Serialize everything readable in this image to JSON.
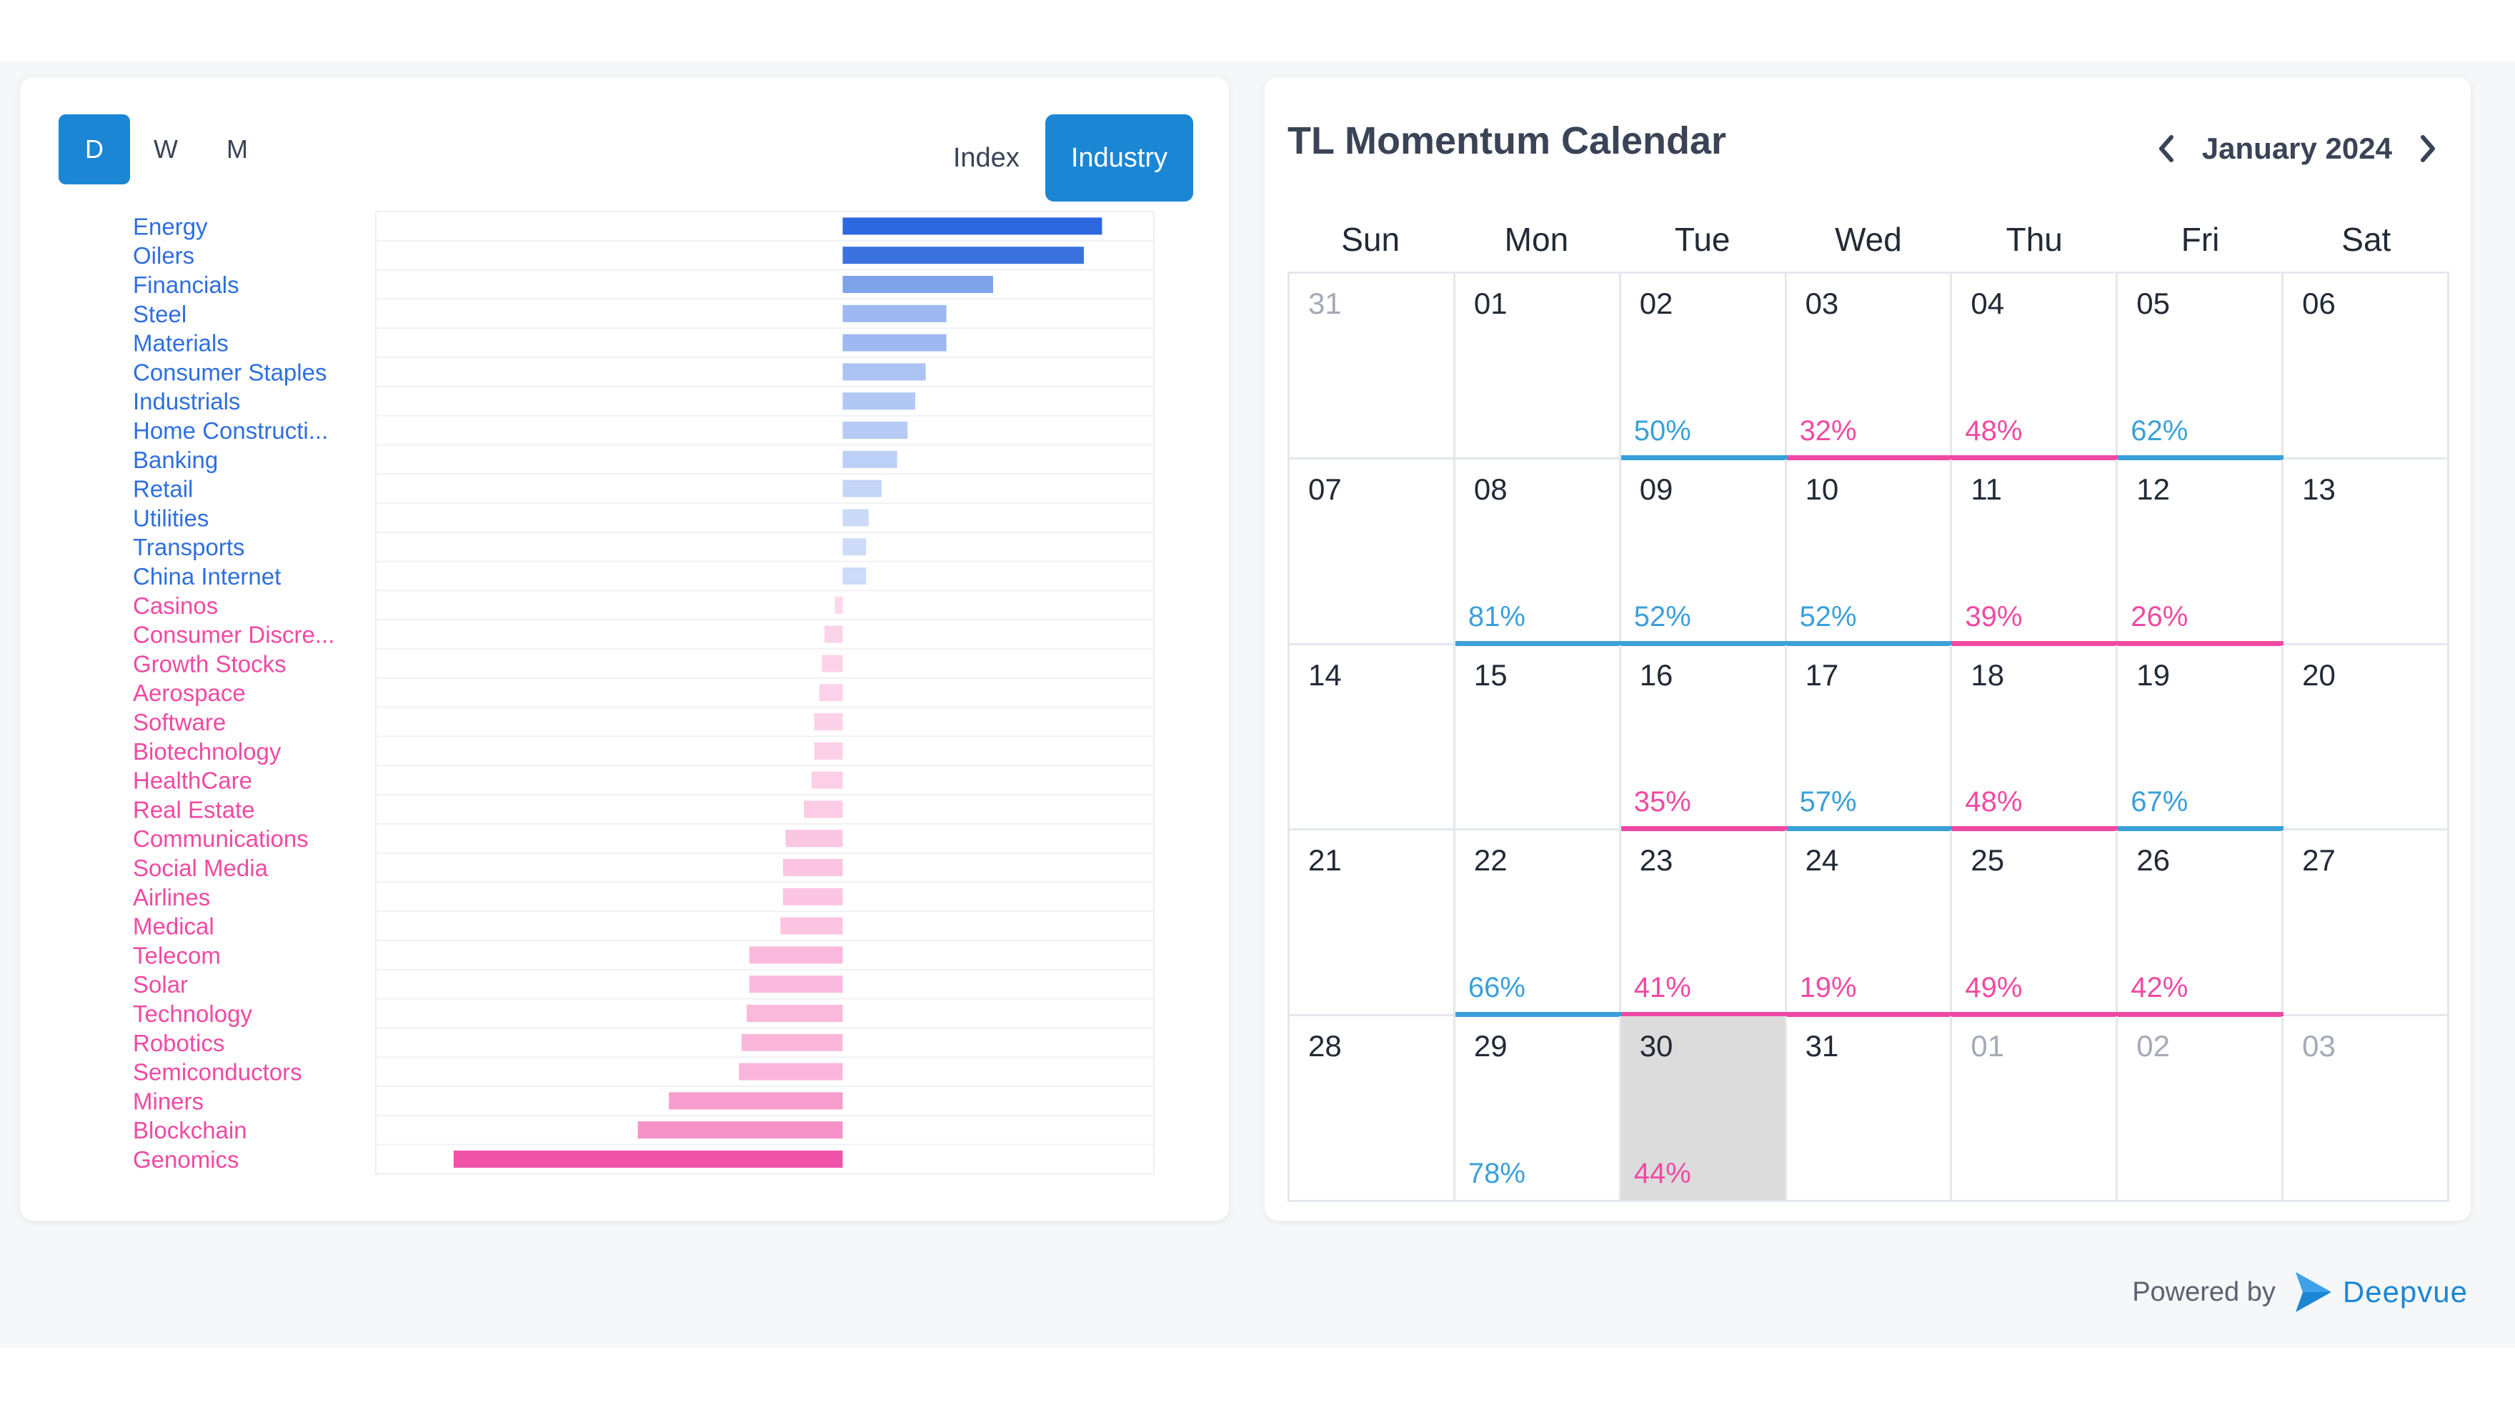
{
  "period_buttons": [
    "D",
    "W",
    "M"
  ],
  "active_period": "D",
  "view_buttons": {
    "index": "Index",
    "industry": "Industry"
  },
  "active_view": "Industry",
  "colors": {
    "accent": "#1b87d4",
    "positive": "#3aa0da",
    "negative": "#ef4aa3"
  },
  "chart_data": {
    "type": "bar",
    "orientation": "horizontal",
    "categories": [
      "Energy",
      "Oilers",
      "Financials",
      "Steel",
      "Materials",
      "Consumer Staples",
      "Industrials",
      "Home Constructi...",
      "Banking",
      "Retail",
      "Utilities",
      "Transports",
      "China Internet",
      "Casinos",
      "Consumer Discre...",
      "Growth Stocks",
      "Aerospace",
      "Software",
      "Biotechnology",
      "HealthCare",
      "Real Estate",
      "Communications",
      "Social Media",
      "Airlines",
      "Medical",
      "Telecom",
      "Solar",
      "Technology",
      "Robotics",
      "Semiconductors",
      "Miners",
      "Blockchain",
      "Genomics"
    ],
    "values": [
      50,
      46.5,
      29,
      20,
      20,
      16,
      14,
      12.5,
      10.5,
      7.5,
      5,
      4.5,
      4.5,
      -1.5,
      -3.5,
      -4,
      -4.5,
      -5.5,
      -5.5,
      -6,
      -7.5,
      -11,
      -11.5,
      -11.5,
      -12,
      -18,
      -18,
      -18.5,
      -19.5,
      -20,
      -33.5,
      -39.5,
      -75
    ],
    "xlim": [
      -90,
      60
    ],
    "grid": true
  },
  "calendar": {
    "title": "TL Momentum Calendar",
    "month_label": "January 2024",
    "weekdays": [
      "Sun",
      "Mon",
      "Tue",
      "Wed",
      "Thu",
      "Fri",
      "Sat"
    ],
    "weeks": [
      [
        {
          "d": "31",
          "muted": true
        },
        {
          "d": "01"
        },
        {
          "d": "02",
          "pct": "50%",
          "dir": "up"
        },
        {
          "d": "03",
          "pct": "32%",
          "dir": "down"
        },
        {
          "d": "04",
          "pct": "48%",
          "dir": "down"
        },
        {
          "d": "05",
          "pct": "62%",
          "dir": "up"
        },
        {
          "d": "06"
        }
      ],
      [
        {
          "d": "07"
        },
        {
          "d": "08",
          "pct": "81%",
          "dir": "up"
        },
        {
          "d": "09",
          "pct": "52%",
          "dir": "up"
        },
        {
          "d": "10",
          "pct": "52%",
          "dir": "up"
        },
        {
          "d": "11",
          "pct": "39%",
          "dir": "down"
        },
        {
          "d": "12",
          "pct": "26%",
          "dir": "down"
        },
        {
          "d": "13"
        }
      ],
      [
        {
          "d": "14"
        },
        {
          "d": "15"
        },
        {
          "d": "16",
          "pct": "35%",
          "dir": "down"
        },
        {
          "d": "17",
          "pct": "57%",
          "dir": "up"
        },
        {
          "d": "18",
          "pct": "48%",
          "dir": "down"
        },
        {
          "d": "19",
          "pct": "67%",
          "dir": "up"
        },
        {
          "d": "20"
        }
      ],
      [
        {
          "d": "21"
        },
        {
          "d": "22",
          "pct": "66%",
          "dir": "up"
        },
        {
          "d": "23",
          "pct": "41%",
          "dir": "down"
        },
        {
          "d": "24",
          "pct": "19%",
          "dir": "down"
        },
        {
          "d": "25",
          "pct": "49%",
          "dir": "down"
        },
        {
          "d": "26",
          "pct": "42%",
          "dir": "down"
        },
        {
          "d": "27"
        }
      ],
      [
        {
          "d": "28"
        },
        {
          "d": "29",
          "pct": "78%",
          "dir": "up",
          "noline": true
        },
        {
          "d": "30",
          "pct": "44%",
          "dir": "down",
          "today": true,
          "noline": true
        },
        {
          "d": "31"
        },
        {
          "d": "01",
          "muted": true
        },
        {
          "d": "02",
          "muted": true
        },
        {
          "d": "03",
          "muted": true
        }
      ]
    ]
  },
  "footer": {
    "powered_by": "Powered by",
    "brand": "Deepvue",
    "brand_icon": "deepvue-logo-icon"
  }
}
